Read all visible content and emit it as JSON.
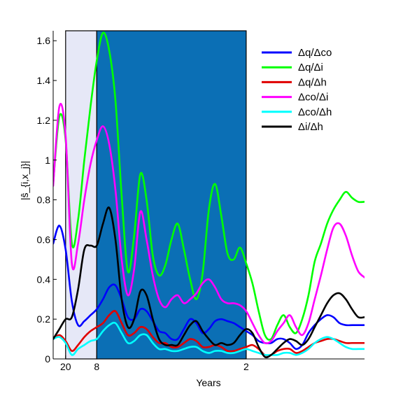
{
  "chart_data": {
    "type": "line",
    "title": "",
    "xlabel": "Years",
    "ylabel": "|ŝ_{i,x_j}|",
    "xlim": [
      0,
      100
    ],
    "ylim": [
      0,
      1.65
    ],
    "x_ticks": [
      {
        "value": 4,
        "label": "20"
      },
      {
        "value": 14,
        "label": "8"
      },
      {
        "value": 62,
        "label": "2"
      }
    ],
    "y_ticks": [
      {
        "value": 0,
        "label": "0"
      },
      {
        "value": 0.2,
        "label": "0.2"
      },
      {
        "value": 0.4,
        "label": "0.4"
      },
      {
        "value": 0.6,
        "label": "0.6"
      },
      {
        "value": 0.8,
        "label": "0.8"
      },
      {
        "value": 1.0,
        "label": "1"
      },
      {
        "value": 1.2,
        "label": "1.2"
      },
      {
        "value": 1.4,
        "label": "1.4"
      },
      {
        "value": 1.6,
        "label": "1.6"
      }
    ],
    "shaded_regions": [
      {
        "x0": 4,
        "x1": 14,
        "color": "#e6e8f7"
      },
      {
        "x0": 14,
        "x1": 62,
        "color": "#0b6fb5"
      }
    ],
    "legend_position": "top-right",
    "series": [
      {
        "name": "Δq/Δco",
        "color": "#0000ff",
        "x": [
          0,
          2,
          4,
          6,
          8,
          10,
          12,
          14,
          16,
          18,
          20,
          22,
          24,
          26,
          28,
          30,
          32,
          34,
          36,
          38,
          40,
          42,
          44,
          46,
          48,
          50,
          52,
          54,
          56,
          58,
          60,
          62,
          64,
          66,
          68,
          70,
          72,
          74,
          76,
          78,
          80,
          82,
          84,
          86,
          88,
          90,
          92,
          94,
          96,
          98,
          100
        ],
        "values": [
          0.58,
          0.67,
          0.55,
          0.29,
          0.17,
          0.19,
          0.22,
          0.25,
          0.3,
          0.36,
          0.37,
          0.3,
          0.21,
          0.2,
          0.25,
          0.24,
          0.19,
          0.14,
          0.13,
          0.1,
          0.1,
          0.15,
          0.2,
          0.18,
          0.13,
          0.15,
          0.19,
          0.2,
          0.19,
          0.18,
          0.16,
          0.14,
          0.12,
          0.09,
          0.08,
          0.08,
          0.1,
          0.1,
          0.08,
          0.05,
          0.07,
          0.13,
          0.17,
          0.2,
          0.22,
          0.21,
          0.18,
          0.17,
          0.17,
          0.17,
          0.17
        ]
      },
      {
        "name": "Δq/Δi",
        "color": "#00ff00",
        "x": [
          0,
          2,
          4,
          6,
          8,
          10,
          12,
          14,
          16,
          18,
          20,
          22,
          24,
          26,
          28,
          30,
          32,
          34,
          36,
          38,
          40,
          42,
          44,
          46,
          48,
          50,
          52,
          54,
          56,
          58,
          60,
          62,
          64,
          66,
          68,
          70,
          72,
          74,
          76,
          78,
          80,
          82,
          84,
          86,
          88,
          90,
          92,
          94,
          96,
          98,
          100
        ],
        "values": [
          0.88,
          1.22,
          1.1,
          0.58,
          0.7,
          1.0,
          1.27,
          1.5,
          1.64,
          1.55,
          1.3,
          0.82,
          0.44,
          0.62,
          0.93,
          0.8,
          0.52,
          0.42,
          0.47,
          0.6,
          0.68,
          0.55,
          0.4,
          0.3,
          0.43,
          0.75,
          0.88,
          0.72,
          0.53,
          0.5,
          0.56,
          0.48,
          0.38,
          0.24,
          0.12,
          0.1,
          0.17,
          0.22,
          0.16,
          0.13,
          0.2,
          0.32,
          0.49,
          0.58,
          0.68,
          0.75,
          0.8,
          0.84,
          0.81,
          0.79,
          0.79
        ]
      },
      {
        "name": "Δq/Δh",
        "color": "#e00000",
        "x": [
          0,
          2,
          4,
          6,
          8,
          10,
          12,
          14,
          16,
          18,
          20,
          22,
          24,
          26,
          28,
          30,
          32,
          34,
          36,
          38,
          40,
          42,
          44,
          46,
          48,
          50,
          52,
          54,
          56,
          58,
          60,
          62,
          64,
          66,
          68,
          70,
          72,
          74,
          76,
          78,
          80,
          82,
          84,
          86,
          88,
          90,
          92,
          94,
          96,
          98,
          100
        ],
        "values": [
          0.1,
          0.12,
          0.09,
          0.04,
          0.07,
          0.11,
          0.14,
          0.16,
          0.18,
          0.22,
          0.24,
          0.18,
          0.12,
          0.13,
          0.16,
          0.15,
          0.11,
          0.08,
          0.08,
          0.06,
          0.06,
          0.08,
          0.1,
          0.09,
          0.06,
          0.06,
          0.07,
          0.06,
          0.04,
          0.04,
          0.05,
          0.06,
          0.07,
          0.05,
          0.02,
          0.02,
          0.04,
          0.05,
          0.05,
          0.03,
          0.04,
          0.06,
          0.08,
          0.09,
          0.1,
          0.1,
          0.09,
          0.08,
          0.08,
          0.08,
          0.08
        ]
      },
      {
        "name": "Δco/Δi",
        "color": "#ff00ff",
        "x": [
          0,
          2,
          4,
          6,
          8,
          10,
          12,
          14,
          16,
          18,
          20,
          22,
          24,
          26,
          28,
          30,
          32,
          34,
          36,
          38,
          40,
          42,
          44,
          46,
          48,
          50,
          52,
          54,
          56,
          58,
          60,
          62,
          64,
          66,
          68,
          70,
          72,
          74,
          76,
          78,
          80,
          82,
          84,
          86,
          88,
          90,
          92,
          94,
          96,
          98,
          100
        ],
        "values": [
          0.87,
          1.27,
          1.12,
          0.48,
          0.58,
          0.8,
          0.98,
          1.1,
          1.17,
          1.08,
          0.85,
          0.5,
          0.32,
          0.45,
          0.74,
          0.6,
          0.42,
          0.3,
          0.26,
          0.3,
          0.32,
          0.28,
          0.3,
          0.33,
          0.38,
          0.4,
          0.36,
          0.3,
          0.28,
          0.28,
          0.27,
          0.24,
          0.18,
          0.12,
          0.08,
          0.09,
          0.14,
          0.18,
          0.22,
          0.16,
          0.12,
          0.18,
          0.3,
          0.42,
          0.55,
          0.66,
          0.68,
          0.62,
          0.52,
          0.44,
          0.41
        ]
      },
      {
        "name": "Δco/Δh",
        "color": "#00ffff",
        "x": [
          0,
          2,
          4,
          6,
          8,
          10,
          12,
          14,
          16,
          18,
          20,
          22,
          24,
          26,
          28,
          30,
          32,
          34,
          36,
          38,
          40,
          42,
          44,
          46,
          48,
          50,
          52,
          54,
          56,
          58,
          60,
          62,
          64,
          66,
          68,
          70,
          72,
          74,
          76,
          78,
          80,
          82,
          84,
          86,
          88,
          90,
          92,
          94,
          96,
          98,
          100
        ],
        "values": [
          0.1,
          0.11,
          0.08,
          0.02,
          0.05,
          0.07,
          0.09,
          0.1,
          0.14,
          0.17,
          0.18,
          0.13,
          0.08,
          0.09,
          0.12,
          0.12,
          0.08,
          0.05,
          0.05,
          0.04,
          0.04,
          0.05,
          0.06,
          0.06,
          0.04,
          0.03,
          0.04,
          0.04,
          0.03,
          0.03,
          0.04,
          0.05,
          0.04,
          0.03,
          0.02,
          0.02,
          0.02,
          0.03,
          0.03,
          0.02,
          0.03,
          0.05,
          0.08,
          0.1,
          0.11,
          0.1,
          0.08,
          0.06,
          0.05,
          0.05,
          0.05
        ]
      },
      {
        "name": "Δi/Δh",
        "color": "#000000",
        "x": [
          0,
          2,
          4,
          6,
          8,
          10,
          12,
          14,
          16,
          18,
          20,
          22,
          24,
          26,
          28,
          30,
          32,
          34,
          36,
          38,
          40,
          42,
          44,
          46,
          48,
          50,
          52,
          54,
          56,
          58,
          60,
          62,
          64,
          66,
          68,
          70,
          72,
          74,
          76,
          78,
          80,
          82,
          84,
          86,
          88,
          90,
          92,
          94,
          96,
          98,
          100
        ],
        "values": [
          0.1,
          0.15,
          0.2,
          0.21,
          0.35,
          0.55,
          0.57,
          0.57,
          0.68,
          0.76,
          0.6,
          0.3,
          0.16,
          0.2,
          0.34,
          0.32,
          0.2,
          0.1,
          0.07,
          0.07,
          0.07,
          0.12,
          0.17,
          0.19,
          0.14,
          0.1,
          0.07,
          0.08,
          0.07,
          0.08,
          0.12,
          0.15,
          0.13,
          0.06,
          0.01,
          0.02,
          0.05,
          0.08,
          0.1,
          0.09,
          0.07,
          0.1,
          0.16,
          0.22,
          0.28,
          0.32,
          0.33,
          0.3,
          0.25,
          0.21,
          0.21
        ]
      }
    ]
  }
}
